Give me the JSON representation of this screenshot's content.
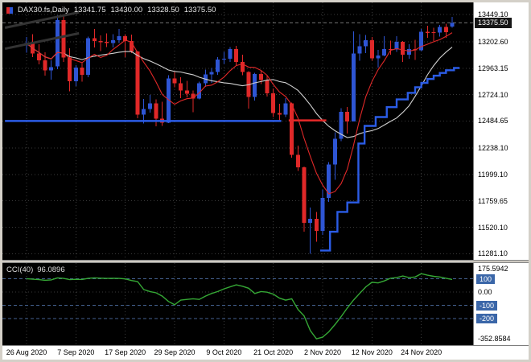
{
  "header": {
    "symbol": "DAX30.fs,Daily",
    "open": "13341.75",
    "high": "13430.00",
    "low": "13328.50",
    "close": "13375.50"
  },
  "indicator_label": {
    "name": "CCI(40)",
    "value": "96.0896"
  },
  "colors": {
    "background": "#000000",
    "frame": "#d4d0c8",
    "axis_bg": "#ffffff",
    "axis_text": "#000000",
    "grid": "#3a3a3a",
    "bull": "#2e55d4",
    "bear": "#e02828",
    "ma_fast": "#e02828",
    "ma_mid": "#d0d0d0",
    "object_blue": "#2b5ce6",
    "trendline": "#333333",
    "cci_line": "#35a835",
    "level_line": "#44618f",
    "level_box": "#3a66a8",
    "current_price_box": "#161616",
    "current_price_line": "#9a9a9a"
  },
  "chart_data": {
    "type": "candlestick",
    "symbol": "DAX30.fs",
    "timeframe": "Daily",
    "x_labels": [
      {
        "index": 0,
        "label": "26 Aug 2020"
      },
      {
        "index": 8,
        "label": "7 Sep 2020"
      },
      {
        "index": 16,
        "label": "17 Sep 2020"
      },
      {
        "index": 24,
        "label": "29 Sep 2020"
      },
      {
        "index": 32,
        "label": "9 Oct 2020"
      },
      {
        "index": 40,
        "label": "21 Oct 2020"
      },
      {
        "index": 48,
        "label": "2 Nov 2020"
      },
      {
        "index": 56,
        "label": "12 Nov 2020"
      },
      {
        "index": 64,
        "label": "24 Nov 2020"
      }
    ],
    "candles": [
      [
        13168,
        13245,
        13105,
        13190
      ],
      [
        13190,
        13270,
        13062,
        13096
      ],
      [
        13096,
        13180,
        12998,
        13033
      ],
      [
        13033,
        13108,
        12895,
        12945
      ],
      [
        12945,
        13035,
        12860,
        12974
      ],
      [
        12980,
        13445,
        12955,
        13400
      ],
      [
        13400,
        13449,
        13020,
        13060
      ],
      [
        13060,
        13145,
        12755,
        12845
      ],
      [
        12845,
        12990,
        12800,
        12968
      ],
      [
        12968,
        13010,
        12840,
        12904
      ],
      [
        12904,
        13250,
        12880,
        13237
      ],
      [
        13237,
        13319,
        13150,
        13209
      ],
      [
        13209,
        13260,
        13120,
        13203
      ],
      [
        13203,
        13280,
        13155,
        13193
      ],
      [
        13193,
        13270,
        13150,
        13217
      ],
      [
        13217,
        13320,
        13190,
        13255
      ],
      [
        13255,
        13270,
        13065,
        13208
      ],
      [
        13208,
        13268,
        13100,
        13116
      ],
      [
        13116,
        13120,
        12510,
        12542
      ],
      [
        12542,
        12685,
        12460,
        12594
      ],
      [
        12594,
        12720,
        12560,
        12643
      ],
      [
        12643,
        12680,
        12435,
        12507
      ],
      [
        12507,
        12660,
        12440,
        12469
      ],
      [
        12469,
        12900,
        12465,
        12871
      ],
      [
        12871,
        12930,
        12790,
        12825
      ],
      [
        12825,
        12880,
        12690,
        12761
      ],
      [
        12761,
        12850,
        12700,
        12730
      ],
      [
        12730,
        12760,
        12565,
        12689
      ],
      [
        12689,
        12840,
        12680,
        12828
      ],
      [
        12828,
        12950,
        12795,
        12906
      ],
      [
        12906,
        12965,
        12830,
        12928
      ],
      [
        12928,
        13065,
        12905,
        13042
      ],
      [
        13042,
        13110,
        13000,
        13051
      ],
      [
        13051,
        13155,
        13020,
        13138
      ],
      [
        13138,
        13165,
        12985,
        13019
      ],
      [
        13019,
        13085,
        12900,
        12930
      ],
      [
        12930,
        12935,
        12595,
        12704
      ],
      [
        12704,
        12920,
        12670,
        12909
      ],
      [
        12909,
        12945,
        12820,
        12855
      ],
      [
        12855,
        12900,
        12705,
        12736
      ],
      [
        12736,
        12780,
        12520,
        12558
      ],
      [
        12558,
        12640,
        12480,
        12543
      ],
      [
        12543,
        12690,
        12520,
        12646
      ],
      [
        12646,
        12650,
        12150,
        12177
      ],
      [
        12177,
        12260,
        12030,
        12064
      ],
      [
        12064,
        12070,
        11480,
        11561
      ],
      [
        11561,
        11700,
        11281,
        11598
      ],
      [
        11598,
        11660,
        11388,
        11486
      ],
      [
        11486,
        11860,
        11450,
        11788
      ],
      [
        11788,
        12110,
        11750,
        12089
      ],
      [
        12089,
        12380,
        11950,
        12324
      ],
      [
        12324,
        12600,
        12300,
        12568
      ],
      [
        12568,
        12610,
        12370,
        12480
      ],
      [
        12480,
        13297,
        12480,
        13095
      ],
      [
        13095,
        13270,
        13030,
        13163
      ],
      [
        13163,
        13265,
        13100,
        13216
      ],
      [
        13216,
        13245,
        13030,
        13052
      ],
      [
        13052,
        13130,
        12970,
        13077
      ],
      [
        13077,
        13255,
        13070,
        13138
      ],
      [
        13138,
        13215,
        13085,
        13133
      ],
      [
        13133,
        13255,
        13110,
        13202
      ],
      [
        13202,
        13210,
        13020,
        13086
      ],
      [
        13086,
        13180,
        13050,
        13137
      ],
      [
        13137,
        13220,
        13040,
        13126
      ],
      [
        13126,
        13320,
        13120,
        13292
      ],
      [
        13292,
        13350,
        13240,
        13290
      ],
      [
        13290,
        13330,
        13210,
        13287
      ],
      [
        13287,
        13355,
        13250,
        13336
      ],
      [
        13336,
        13365,
        13240,
        13291
      ],
      [
        13341.75,
        13430,
        13328.5,
        13375.5
      ]
    ],
    "price_axis": {
      "min": 11225,
      "max": 13560,
      "current_value": 13375.5,
      "current_label": "13375.50",
      "ticks": [
        {
          "label": "13449.10",
          "value": 13449.1
        },
        {
          "label": "13202.60",
          "value": 13202.6
        },
        {
          "label": "12963.15",
          "value": 12963.15
        },
        {
          "label": "12724.10",
          "value": 12724.1
        },
        {
          "label": "12484.65",
          "value": 12484.65
        },
        {
          "label": "12238.10",
          "value": 12238.1
        },
        {
          "label": "11999.10",
          "value": 11999.1
        },
        {
          "label": "11759.65",
          "value": 11759.65
        },
        {
          "label": "11520.10",
          "value": 11520.1
        },
        {
          "label": "11281.10",
          "value": 11281.1
        }
      ]
    },
    "overlays": {
      "moving_averages": [
        {
          "period": 18,
          "color_key": "ma_mid",
          "width": 1.1
        },
        {
          "period": 7,
          "color_key": "ma_fast",
          "width": 1.1
        }
      ],
      "support_line": {
        "price": 12484.65,
        "from_index": -3.5,
        "to_index": 41.3
      },
      "resistance_segment": {
        "price": 12490,
        "from_index": 42.5,
        "to_index": 48.6
      },
      "trendlines": [
        {
          "from_index": -3.5,
          "from_price": 13330,
          "to_index": 8.5,
          "to_price": 13470
        },
        {
          "from_index": -3.5,
          "from_price": 13140,
          "to_index": 8.5,
          "to_price": 13280
        }
      ],
      "trail_line": {
        "points": [
          [
            47.6,
            11310
          ],
          [
            49.2,
            11310
          ],
          [
            49.2,
            11480
          ],
          [
            50.4,
            11480
          ],
          [
            50.4,
            11660
          ],
          [
            52,
            11660
          ],
          [
            52,
            11745
          ],
          [
            53.8,
            11745
          ],
          [
            53.8,
            12280
          ],
          [
            54.8,
            12280
          ],
          [
            54.8,
            12440
          ],
          [
            56.6,
            12440
          ],
          [
            56.6,
            12520
          ],
          [
            58.4,
            12520
          ],
          [
            58.4,
            12610
          ],
          [
            60,
            12610
          ],
          [
            60,
            12680
          ],
          [
            61.8,
            12680
          ],
          [
            61.8,
            12740
          ],
          [
            63,
            12740
          ],
          [
            63,
            12790
          ],
          [
            64,
            12790
          ],
          [
            64,
            12830
          ],
          [
            65,
            12830
          ],
          [
            65,
            12865
          ],
          [
            66,
            12865
          ],
          [
            66,
            12895
          ],
          [
            67,
            12895
          ],
          [
            67,
            12920
          ],
          [
            68,
            12920
          ],
          [
            68,
            12945
          ],
          [
            69.3,
            12945
          ],
          [
            69.3,
            12965
          ],
          [
            70.2,
            12965
          ]
        ]
      }
    },
    "indicator": {
      "name": "CCI",
      "period": 40,
      "current_value": 96.0896,
      "min": -400,
      "max": 220,
      "levels": [
        100,
        -100,
        -200
      ],
      "zero_line": 0,
      "axis_ticks": [
        {
          "label": "175.5942",
          "value": 175.5942,
          "boxed": false
        },
        {
          "label": "100",
          "value": 100,
          "boxed": true
        },
        {
          "label": "0.00",
          "value": 0,
          "boxed": false
        },
        {
          "label": "-100",
          "value": -100,
          "boxed": true
        },
        {
          "label": "-200",
          "value": -200,
          "boxed": true
        },
        {
          "label": "-352.8584",
          "value": -352.8584,
          "boxed": false
        }
      ],
      "values": [
        102,
        98,
        95,
        90,
        93,
        108,
        104,
        95,
        97,
        96,
        105,
        108,
        106,
        104,
        105,
        104,
        100,
        88,
        80,
        20,
        5,
        -5,
        -30,
        -70,
        -95,
        -60,
        -55,
        -50,
        -55,
        -30,
        -10,
        5,
        25,
        40,
        55,
        45,
        30,
        -10,
        5,
        0,
        -15,
        -45,
        -60,
        -50,
        -130,
        -180,
        -290,
        -352.86,
        -340,
        -300,
        -245,
        -185,
        -120,
        -60,
        -10,
        40,
        75,
        70,
        85,
        105,
        110,
        122,
        110,
        115,
        140,
        128,
        120,
        115,
        105,
        96.09
      ]
    }
  }
}
